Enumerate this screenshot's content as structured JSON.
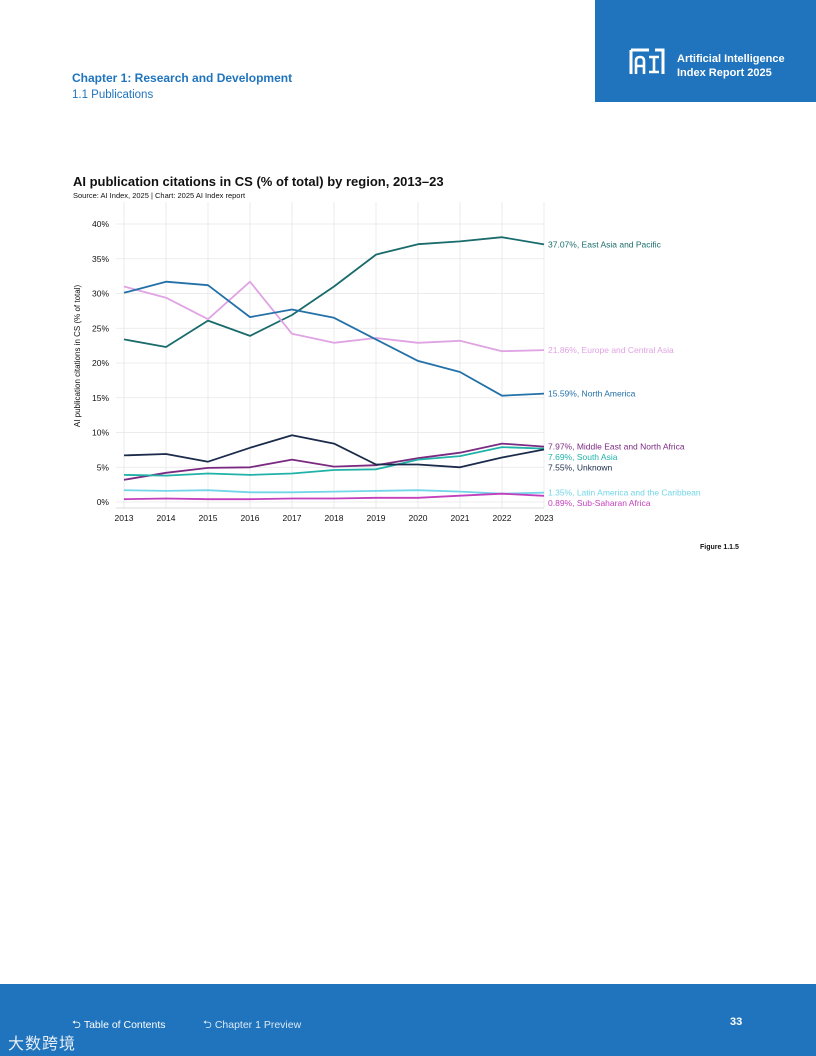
{
  "header": {
    "badge_line1": "Artificial Intelligence",
    "badge_line2": "Index Report 2025",
    "chapter": "Chapter 1: Research and Development",
    "section": "1.1 Publications"
  },
  "figure": {
    "label": "Figure 1.1.5"
  },
  "footer": {
    "toc_label": "Table of Contents",
    "chapter_label": "Chapter 1 Preview",
    "page_number": "33",
    "watermark": "大数跨境"
  },
  "colors": {
    "brand_blue": "#1f74bd"
  },
  "chart_data": {
    "type": "line",
    "title": "AI publication citations in CS (% of total) by region, 2013–23",
    "source": "Source: AI Index, 2025 | Chart: 2025 AI Index report",
    "xlabel": "",
    "ylabel": "AI publication citations in CS (% of total)",
    "x": [
      2013,
      2014,
      2015,
      2016,
      2017,
      2018,
      2019,
      2020,
      2021,
      2022,
      2023
    ],
    "x_tick_labels": [
      "2013",
      "2014",
      "2015",
      "2016",
      "2017",
      "2018",
      "2019",
      "2020",
      "2021",
      "2022",
      "2023"
    ],
    "ylim": [
      0,
      42
    ],
    "y_ticks": [
      0,
      5,
      10,
      15,
      20,
      25,
      30,
      35,
      40
    ],
    "y_tick_labels": [
      "0%",
      "5%",
      "10%",
      "15%",
      "20%",
      "25%",
      "30%",
      "35%",
      "40%"
    ],
    "grid": true,
    "series": [
      {
        "name": "East Asia and Pacific",
        "label": "37.07%, East Asia and Pacific",
        "color": "#1a6b6b",
        "values": [
          23.4,
          22.3,
          26.1,
          23.9,
          26.9,
          31.0,
          35.6,
          37.1,
          37.5,
          38.1,
          37.07
        ]
      },
      {
        "name": "Europe and Central Asia",
        "label": "21.86%, Europe and Central Asia",
        "color": "#e0a3e3",
        "values": [
          31.0,
          29.4,
          26.3,
          31.7,
          24.2,
          22.9,
          23.6,
          22.9,
          23.2,
          21.7,
          21.86
        ]
      },
      {
        "name": "North America",
        "label": "15.59%, North America",
        "color": "#2371a8",
        "values": [
          30.1,
          31.7,
          31.2,
          26.6,
          27.7,
          26.5,
          23.4,
          20.3,
          18.7,
          15.3,
          15.59
        ]
      },
      {
        "name": "Middle East and North Africa",
        "label": "7.97%, Middle East and North Africa",
        "color": "#7b2a82",
        "values": [
          3.2,
          4.2,
          4.9,
          5.0,
          6.1,
          5.1,
          5.3,
          6.3,
          7.1,
          8.4,
          7.97
        ]
      },
      {
        "name": "South Asia",
        "label": "7.69%, South Asia",
        "color": "#20b2a8",
        "values": [
          3.9,
          3.8,
          4.1,
          3.9,
          4.1,
          4.6,
          4.7,
          6.1,
          6.6,
          7.9,
          7.69
        ]
      },
      {
        "name": "Unknown",
        "label": "7.55%, Unknown",
        "color": "#1b2b4b",
        "values": [
          6.7,
          6.9,
          5.8,
          7.8,
          9.6,
          8.4,
          5.4,
          5.4,
          5.0,
          6.4,
          7.55
        ]
      },
      {
        "name": "Latin America and the Caribbean",
        "label": "1.35%, Latin America and the Caribbean",
        "color": "#72d6e8",
        "values": [
          1.7,
          1.6,
          1.7,
          1.4,
          1.4,
          1.5,
          1.6,
          1.7,
          1.5,
          1.2,
          1.35
        ]
      },
      {
        "name": "Sub-Saharan Africa",
        "label": "0.89%, Sub-Saharan Africa",
        "color": "#c23fbd",
        "values": [
          0.4,
          0.5,
          0.4,
          0.4,
          0.5,
          0.5,
          0.6,
          0.6,
          0.9,
          1.2,
          0.89
        ]
      }
    ]
  }
}
